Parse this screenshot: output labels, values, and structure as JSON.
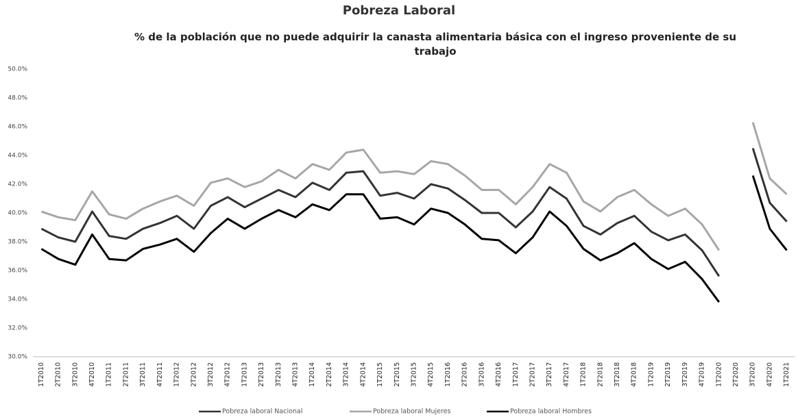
{
  "chart_data": {
    "type": "line",
    "title": "Pobreza Laboral",
    "subtitle": "% de la población que no puede adquirir la canasta alimentaria básica con el ingreso proveniente de su trabajo",
    "categories": [
      "1T2010",
      "2T2010",
      "3T2010",
      "4T2010",
      "1T2011",
      "2T2011",
      "3T2011",
      "4T2011",
      "1T2012",
      "2T2012",
      "3T2012",
      "4T2012",
      "1T2013",
      "2T2013",
      "3T2013",
      "4T2013",
      "1T2014",
      "2T2014",
      "3T2014",
      "4T2014",
      "1T2015",
      "2T2015",
      "3T2015",
      "4T2015",
      "1T2016",
      "2T2016",
      "3T2016",
      "4T2016",
      "1T2017",
      "2T2017",
      "3T2017",
      "4T2017",
      "1T2018",
      "2T2018",
      "3T2018",
      "4T2018",
      "1T2019",
      "2T2019",
      "3T2019",
      "4T2019",
      "1T2020",
      "2T2020",
      "3T2020",
      "4T2020",
      "1T2021"
    ],
    "series": [
      {
        "name": "Pobreza laboral Nacional",
        "color": "#333333",
        "values": [
          38.9,
          38.3,
          38.0,
          40.1,
          38.4,
          38.2,
          38.9,
          39.3,
          39.8,
          38.9,
          40.5,
          41.1,
          40.4,
          41.0,
          41.6,
          41.1,
          42.1,
          41.6,
          42.8,
          42.9,
          41.2,
          41.4,
          41.0,
          42.0,
          41.7,
          40.9,
          40.0,
          40.0,
          39.0,
          40.1,
          41.8,
          41.0,
          39.1,
          38.5,
          39.3,
          39.8,
          38.7,
          38.1,
          38.5,
          37.4,
          35.6,
          null,
          44.5,
          40.7,
          39.4
        ]
      },
      {
        "name": "Pobreza laboral Mujeres",
        "color": "#a6a6a6",
        "values": [
          40.1,
          39.7,
          39.5,
          41.5,
          39.9,
          39.6,
          40.3,
          40.8,
          41.2,
          40.5,
          42.1,
          42.4,
          41.8,
          42.2,
          43.0,
          42.4,
          43.4,
          43.0,
          44.2,
          44.4,
          42.8,
          42.9,
          42.7,
          43.6,
          43.4,
          42.6,
          41.6,
          41.6,
          40.6,
          41.8,
          43.4,
          42.8,
          40.8,
          40.1,
          41.1,
          41.6,
          40.6,
          39.8,
          40.3,
          39.2,
          37.4,
          null,
          46.3,
          42.4,
          41.3
        ]
      },
      {
        "name": "Pobreza laboral Hombres",
        "color": "#000000",
        "values": [
          37.5,
          36.8,
          36.4,
          38.5,
          36.8,
          36.7,
          37.5,
          37.8,
          38.2,
          37.3,
          38.6,
          39.6,
          38.9,
          39.6,
          40.2,
          39.7,
          40.6,
          40.2,
          41.3,
          41.3,
          39.6,
          39.7,
          39.2,
          40.3,
          40.0,
          39.2,
          38.2,
          38.1,
          37.2,
          38.3,
          40.1,
          39.1,
          37.5,
          36.7,
          37.2,
          37.9,
          36.8,
          36.1,
          36.6,
          35.4,
          33.8,
          null,
          42.6,
          38.9,
          37.4
        ]
      }
    ],
    "ylim": [
      30,
      50
    ],
    "yticks": [
      {
        "value": 30,
        "label": "30.0%"
      },
      {
        "value": 32,
        "label": "32.0%"
      },
      {
        "value": 34,
        "label": "34.0%"
      },
      {
        "value": 36,
        "label": "36.0%"
      },
      {
        "value": 38,
        "label": "38.0%"
      },
      {
        "value": 40,
        "label": "40.0%"
      },
      {
        "value": 42,
        "label": "42.0%"
      },
      {
        "value": 44,
        "label": "44.0%"
      },
      {
        "value": 46,
        "label": "46.0%"
      },
      {
        "value": 48,
        "label": "48.0%"
      },
      {
        "value": 50,
        "label": "50.0%"
      }
    ],
    "grid": false,
    "legend": "bottom"
  }
}
